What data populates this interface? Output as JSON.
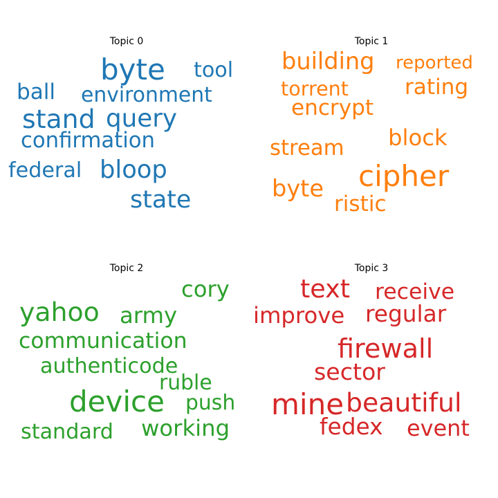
{
  "chart_data": [
    {
      "type": "wordcloud",
      "title": "Topic 0",
      "color": "#1f77b4",
      "words": [
        {
          "text": "byte",
          "weight": 1.0
        },
        {
          "text": "tool",
          "weight": 0.72
        },
        {
          "text": "ball",
          "weight": 0.74
        },
        {
          "text": "environment",
          "weight": 0.71
        },
        {
          "text": "stand",
          "weight": 0.9
        },
        {
          "text": "query",
          "weight": 0.85
        },
        {
          "text": "confirmation",
          "weight": 0.73
        },
        {
          "text": "federal",
          "weight": 0.72
        },
        {
          "text": "bloop",
          "weight": 0.84
        },
        {
          "text": "state",
          "weight": 0.83
        }
      ]
    },
    {
      "type": "wordcloud",
      "title": "Topic 1",
      "color": "#ff7f0e",
      "words": [
        {
          "text": "building",
          "weight": 0.8
        },
        {
          "text": "reported",
          "weight": 0.62
        },
        {
          "text": "torrent",
          "weight": 0.68
        },
        {
          "text": "rating",
          "weight": 0.74
        },
        {
          "text": "encrypt",
          "weight": 0.74
        },
        {
          "text": "block",
          "weight": 0.77
        },
        {
          "text": "stream",
          "weight": 0.73
        },
        {
          "text": "cipher",
          "weight": 1.0
        },
        {
          "text": "byte",
          "weight": 0.8
        },
        {
          "text": "ristic",
          "weight": 0.74
        }
      ]
    },
    {
      "type": "wordcloud",
      "title": "Topic 2",
      "color": "#2ca02c",
      "words": [
        {
          "text": "cory",
          "weight": 0.77
        },
        {
          "text": "yahoo",
          "weight": 0.9
        },
        {
          "text": "army",
          "weight": 0.77
        },
        {
          "text": "communication",
          "weight": 0.75
        },
        {
          "text": "authenticode",
          "weight": 0.72
        },
        {
          "text": "ruble",
          "weight": 0.71
        },
        {
          "text": "device",
          "weight": 1.0
        },
        {
          "text": "push",
          "weight": 0.71
        },
        {
          "text": "standard",
          "weight": 0.72
        },
        {
          "text": "working",
          "weight": 0.77
        }
      ]
    },
    {
      "type": "wordcloud",
      "title": "Topic 3",
      "color": "#d62728",
      "words": [
        {
          "text": "text",
          "weight": 0.87
        },
        {
          "text": "receive",
          "weight": 0.75
        },
        {
          "text": "improve",
          "weight": 0.77
        },
        {
          "text": "regular",
          "weight": 0.78
        },
        {
          "text": "firewall",
          "weight": 0.91
        },
        {
          "text": "sector",
          "weight": 0.79
        },
        {
          "text": "mine",
          "weight": 1.0
        },
        {
          "text": "beautiful",
          "weight": 0.9
        },
        {
          "text": "fedex",
          "weight": 0.78
        },
        {
          "text": "event",
          "weight": 0.76
        }
      ]
    }
  ]
}
